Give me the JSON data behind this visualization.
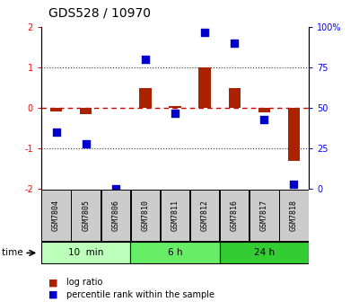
{
  "title": "GDS528 / 10970",
  "samples": [
    "GSM7804",
    "GSM7805",
    "GSM7806",
    "GSM7810",
    "GSM7811",
    "GSM7812",
    "GSM7816",
    "GSM7817",
    "GSM7818"
  ],
  "log_ratio": [
    -0.08,
    -0.15,
    0.0,
    0.5,
    0.05,
    1.0,
    0.5,
    -0.1,
    -1.3
  ],
  "percentile_rank": [
    35,
    28,
    0,
    80,
    47,
    97,
    90,
    43,
    3
  ],
  "groups": [
    {
      "label": "10  min",
      "count": 3,
      "color": "#bbffbb"
    },
    {
      "label": "6 h",
      "count": 3,
      "color": "#66ee66"
    },
    {
      "label": "24 h",
      "count": 3,
      "color": "#33cc33"
    }
  ],
  "ylim": [
    -2,
    2
  ],
  "yticks_left": [
    -2,
    -1,
    0,
    1,
    2
  ],
  "yticks_right": [
    0,
    25,
    50,
    75,
    100
  ],
  "bar_color": "#aa2200",
  "dot_color": "#0000cc",
  "hline_red_color": "#cc0000",
  "dotted_color": "#333333",
  "background_color": "#ffffff",
  "sample_box_color": "#cccccc"
}
